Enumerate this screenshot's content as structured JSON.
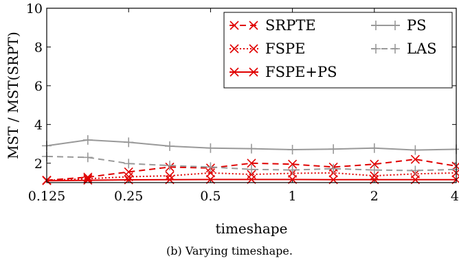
{
  "chart_data": {
    "type": "line",
    "xlabel": "timeshape",
    "ylabel": "MST / MST(SRPT)",
    "x_scale": "log2",
    "xlim": [
      0.125,
      4
    ],
    "ylim": [
      1,
      10
    ],
    "x_ticks": [
      0.125,
      0.25,
      0.5,
      1,
      2,
      4
    ],
    "x_tick_labels": [
      "0.125",
      "0.25",
      "0.5",
      "1",
      "2",
      "4"
    ],
    "y_ticks": [
      2,
      4,
      6,
      8,
      10
    ],
    "y_tick_labels": [
      "2",
      "4",
      "6",
      "8",
      "10"
    ],
    "grid": false,
    "legend_position": "top-right",
    "x": [
      0.125,
      0.177,
      0.25,
      0.354,
      0.5,
      0.707,
      1,
      1.414,
      2,
      2.828,
      4
    ],
    "series": [
      {
        "name": "SRPTE",
        "color": "#e00000",
        "dash": "dashed",
        "marker": "x",
        "values": [
          1.12,
          1.28,
          1.55,
          1.8,
          1.75,
          2.0,
          1.95,
          1.8,
          1.95,
          2.2,
          1.85
        ]
      },
      {
        "name": "FSPE",
        "color": "#e00000",
        "dash": "dotted",
        "marker": "x",
        "values": [
          1.12,
          1.2,
          1.3,
          1.35,
          1.5,
          1.42,
          1.48,
          1.5,
          1.35,
          1.45,
          1.5
        ]
      },
      {
        "name": "FSPE+PS",
        "color": "#e00000",
        "dash": "solid",
        "marker": "x",
        "values": [
          1.1,
          1.12,
          1.14,
          1.15,
          1.16,
          1.16,
          1.16,
          1.15,
          1.15,
          1.15,
          1.15
        ]
      },
      {
        "name": "PS",
        "color": "#999999",
        "dash": "solid",
        "marker": "+",
        "values": [
          2.9,
          3.2,
          3.08,
          2.88,
          2.78,
          2.75,
          2.7,
          2.73,
          2.78,
          2.68,
          2.72
        ]
      },
      {
        "name": "LAS",
        "color": "#999999",
        "dash": "dashed",
        "marker": "+",
        "values": [
          2.35,
          2.3,
          1.98,
          1.88,
          1.8,
          1.68,
          1.65,
          1.72,
          1.65,
          1.62,
          1.68
        ]
      }
    ]
  },
  "caption": "(b) Varying timeshape."
}
